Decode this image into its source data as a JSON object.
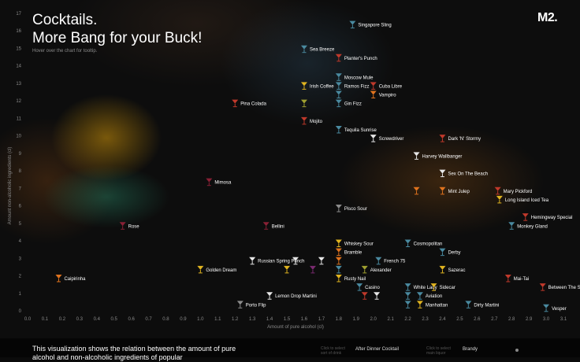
{
  "header": {
    "title_line1": "Cocktails.",
    "title_line2": "More Bang for your Buck!",
    "hint": "Hover over the chart for tooltip.",
    "logo": "M2."
  },
  "footer": {
    "description": "This visualization shows the relation between the amount of pure alcohol and non-alcoholic ingredients of popular",
    "sort_hint_1": "Click to select sort of drink",
    "sort_option_1": "After Dinner Cocktail",
    "sort_hint_2": "Click to select main liquor",
    "sort_option_2": "Brandy"
  },
  "colors": {
    "teal": "#4a8aa0",
    "red": "#c0392b",
    "orange": "#e0731e",
    "yellow": "#e0b420",
    "white": "#e8e8e8",
    "maroon": "#8a2035",
    "olive": "#a0a030",
    "purple": "#7a2a70",
    "gray": "#8c8c8c"
  },
  "chart_data": {
    "type": "scatter",
    "xlabel": "Amount of pure alcohol (cl)",
    "ylabel": "Amount non-alcoholic ingredients (cl)",
    "xlim": [
      0,
      3.1
    ],
    "ylim": [
      0,
      17
    ],
    "xticks": [
      "0.0",
      "0.1",
      "0.2",
      "0.3",
      "0.4",
      "0.5",
      "0.6",
      "0.7",
      "0.8",
      "0.9",
      "1.0",
      "1.1",
      "1.2",
      "1.3",
      "1.4",
      "1.5",
      "1.6",
      "1.7",
      "1.8",
      "1.9",
      "2.0",
      "2.1",
      "2.2",
      "2.3",
      "2.4",
      "2.5",
      "2.6",
      "2.7",
      "2.8",
      "2.9",
      "3.0",
      "3.1"
    ],
    "yticks": [
      "0",
      "1",
      "2",
      "3",
      "4",
      "5",
      "6",
      "7",
      "8",
      "9",
      "10",
      "11",
      "12",
      "13",
      "14",
      "15",
      "16",
      "17"
    ],
    "points": [
      {
        "name": "Singapore Sling",
        "x": 1.88,
        "y": 16.3,
        "color": "teal"
      },
      {
        "name": "Sea Breeze",
        "x": 1.6,
        "y": 14.9,
        "color": "teal"
      },
      {
        "name": "Planter's Punch",
        "x": 1.8,
        "y": 14.4,
        "color": "red"
      },
      {
        "name": "Moscow Mule",
        "x": 1.8,
        "y": 13.3,
        "color": "teal"
      },
      {
        "name": "Irish Coffee",
        "x": 1.6,
        "y": 12.8,
        "color": "yellow"
      },
      {
        "name": "Ramos Fizz",
        "x": 1.8,
        "y": 12.8,
        "color": "teal"
      },
      {
        "name": "Cuba Libre",
        "x": 2.0,
        "y": 12.8,
        "color": "red"
      },
      {
        "name": "",
        "x": 1.8,
        "y": 12.3,
        "color": "teal"
      },
      {
        "name": "Vampiro",
        "x": 2.0,
        "y": 12.3,
        "color": "orange"
      },
      {
        "name": "Pina Colada",
        "x": 1.2,
        "y": 11.8,
        "color": "red"
      },
      {
        "name": "",
        "x": 1.6,
        "y": 11.8,
        "color": "olive"
      },
      {
        "name": "Gin Fizz",
        "x": 1.8,
        "y": 11.8,
        "color": "teal"
      },
      {
        "name": "Mojito",
        "x": 1.6,
        "y": 10.8,
        "color": "red"
      },
      {
        "name": "Tequila Sunrise",
        "x": 1.8,
        "y": 10.3,
        "color": "teal"
      },
      {
        "name": "Screwdriver",
        "x": 2.0,
        "y": 9.8,
        "color": "white"
      },
      {
        "name": "Dark 'N' Stormy",
        "x": 2.4,
        "y": 9.8,
        "color": "red"
      },
      {
        "name": "Harvey Wallbanger",
        "x": 2.25,
        "y": 8.8,
        "color": "white"
      },
      {
        "name": "Sex On The Beach",
        "x": 2.4,
        "y": 7.8,
        "color": "white"
      },
      {
        "name": "Mimosa",
        "x": 1.05,
        "y": 7.3,
        "color": "maroon"
      },
      {
        "name": "",
        "x": 2.25,
        "y": 6.8,
        "color": "orange"
      },
      {
        "name": "Mint Julep",
        "x": 2.4,
        "y": 6.8,
        "color": "orange"
      },
      {
        "name": "Mary Pickford",
        "x": 2.72,
        "y": 6.8,
        "color": "red"
      },
      {
        "name": "Long Island Iced Tea",
        "x": 2.73,
        "y": 6.3,
        "color": "yellow"
      },
      {
        "name": "Pisco Sour",
        "x": 1.8,
        "y": 5.8,
        "color": "gray"
      },
      {
        "name": "Hemingway Special",
        "x": 2.88,
        "y": 5.3,
        "color": "red"
      },
      {
        "name": "Rose",
        "x": 0.55,
        "y": 4.8,
        "color": "maroon"
      },
      {
        "name": "Bellini",
        "x": 1.38,
        "y": 4.8,
        "color": "maroon"
      },
      {
        "name": "Monkey Gland",
        "x": 2.8,
        "y": 4.8,
        "color": "teal"
      },
      {
        "name": "Whiskey Sour",
        "x": 1.8,
        "y": 3.8,
        "color": "yellow"
      },
      {
        "name": "Cosmopolitan",
        "x": 2.2,
        "y": 3.8,
        "color": "teal"
      },
      {
        "name": "Bramble",
        "x": 1.8,
        "y": 3.3,
        "color": "orange"
      },
      {
        "name": "Derby",
        "x": 2.4,
        "y": 3.3,
        "color": "teal"
      },
      {
        "name": "Russian Spring Punch",
        "x": 1.3,
        "y": 2.8,
        "color": "white"
      },
      {
        "name": "",
        "x": 1.55,
        "y": 2.8,
        "color": "white"
      },
      {
        "name": "",
        "x": 1.7,
        "y": 2.8,
        "color": "white"
      },
      {
        "name": "",
        "x": 1.8,
        "y": 2.8,
        "color": "orange"
      },
      {
        "name": "French 75",
        "x": 2.03,
        "y": 2.8,
        "color": "teal"
      },
      {
        "name": "Golden Dream",
        "x": 1.0,
        "y": 2.3,
        "color": "yellow"
      },
      {
        "name": "",
        "x": 1.5,
        "y": 2.3,
        "color": "yellow"
      },
      {
        "name": "",
        "x": 1.65,
        "y": 2.3,
        "color": "purple"
      },
      {
        "name": "",
        "x": 1.8,
        "y": 2.3,
        "color": "teal"
      },
      {
        "name": "Alexander",
        "x": 1.95,
        "y": 2.3,
        "color": "olive"
      },
      {
        "name": "Sazerac",
        "x": 2.4,
        "y": 2.3,
        "color": "yellow"
      },
      {
        "name": "Caipirinha",
        "x": 0.18,
        "y": 1.8,
        "color": "orange"
      },
      {
        "name": "Rusty Nail",
        "x": 1.8,
        "y": 1.8,
        "color": "yellow"
      },
      {
        "name": "Mai-Tai",
        "x": 2.78,
        "y": 1.8,
        "color": "red"
      },
      {
        "name": "Casino",
        "x": 1.92,
        "y": 1.3,
        "color": "teal"
      },
      {
        "name": "White Lady",
        "x": 2.2,
        "y": 1.3,
        "color": "teal"
      },
      {
        "name": "Sidecar",
        "x": 2.35,
        "y": 1.3,
        "color": "yellow"
      },
      {
        "name": "Between The Sheets",
        "x": 2.98,
        "y": 1.3,
        "color": "red"
      },
      {
        "name": "Lemon Drop Martini",
        "x": 1.4,
        "y": 0.8,
        "color": "white"
      },
      {
        "name": "",
        "x": 1.95,
        "y": 0.8,
        "color": "red"
      },
      {
        "name": "",
        "x": 2.02,
        "y": 0.8,
        "color": "white"
      },
      {
        "name": "",
        "x": 2.2,
        "y": 0.8,
        "color": "teal"
      },
      {
        "name": "Aviation",
        "x": 2.27,
        "y": 0.8,
        "color": "teal"
      },
      {
        "name": "Porto Flip",
        "x": 1.23,
        "y": 0.3,
        "color": "gray"
      },
      {
        "name": "",
        "x": 2.2,
        "y": 0.3,
        "color": "teal"
      },
      {
        "name": "Manhattan",
        "x": 2.27,
        "y": 0.3,
        "color": "yellow"
      },
      {
        "name": "Dirty Martini",
        "x": 2.55,
        "y": 0.3,
        "color": "teal"
      },
      {
        "name": "Vesper",
        "x": 3.0,
        "y": 0.1,
        "color": "teal"
      }
    ]
  }
}
